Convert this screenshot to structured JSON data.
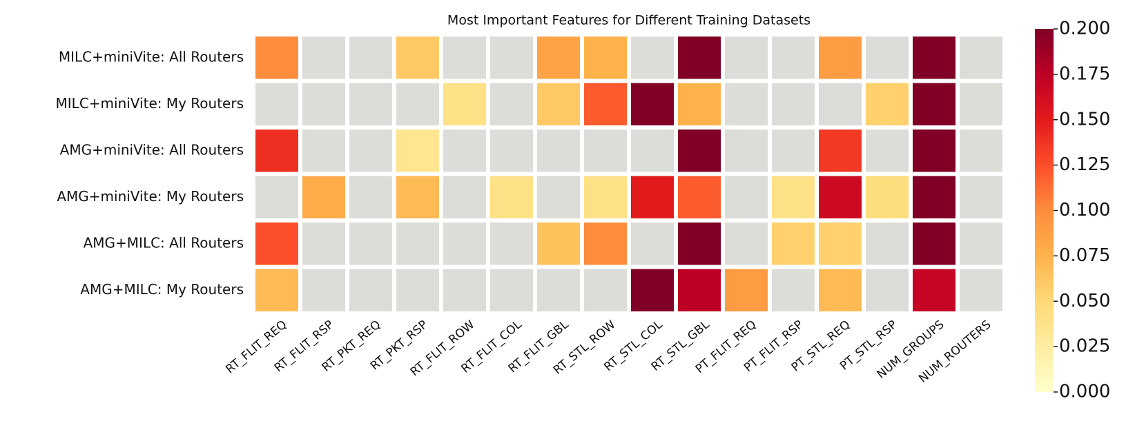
{
  "chart_data": {
    "type": "heatmap",
    "title": "Most Important Features for Different Training Datasets",
    "rows": [
      "MILC+miniVite: All Routers",
      "MILC+miniVite: My Routers",
      "AMG+miniVite: All Routers",
      "AMG+miniVite: My Routers",
      "AMG+MILC: All Routers",
      "AMG+MILC: My Routers"
    ],
    "columns": [
      "RT_FLIT_REQ",
      "RT_FLIT_RSP",
      "RT_PKT_REQ",
      "RT_PKT_RSP",
      "RT_FLIT_ROW",
      "RT_FLIT_COL",
      "RT_FLIT_GBL",
      "RT_STL_ROW",
      "RT_STL_COL",
      "RT_STL_GBL",
      "PT_FLIT_REQ",
      "PT_FLIT_RSP",
      "PT_STL_REQ",
      "PT_STL_RSP",
      "NUM_GROUPS",
      "NUM_ROUTERS"
    ],
    "values": [
      [
        0.1,
        null,
        null,
        0.06,
        null,
        null,
        0.085,
        0.075,
        null,
        0.2,
        null,
        null,
        0.09,
        null,
        0.2,
        null
      ],
      [
        null,
        null,
        null,
        null,
        0.04,
        null,
        0.06,
        0.12,
        0.2,
        0.075,
        null,
        null,
        null,
        0.055,
        0.2,
        null
      ],
      [
        0.14,
        null,
        null,
        0.035,
        null,
        null,
        null,
        null,
        null,
        0.2,
        null,
        null,
        0.135,
        null,
        0.2,
        null
      ],
      [
        null,
        0.08,
        null,
        0.07,
        null,
        0.04,
        null,
        0.04,
        0.15,
        0.12,
        null,
        0.04,
        0.165,
        0.045,
        0.2,
        null
      ],
      [
        0.125,
        null,
        null,
        null,
        null,
        null,
        0.065,
        0.1,
        null,
        0.2,
        null,
        0.055,
        0.055,
        null,
        0.2,
        null
      ],
      [
        0.07,
        null,
        null,
        null,
        null,
        null,
        null,
        null,
        0.2,
        0.175,
        0.09,
        null,
        0.07,
        null,
        0.17,
        null
      ]
    ],
    "colormap": "YlOrRd",
    "null_color": "#dcdcd9",
    "clim": [
      0,
      0.2
    ],
    "cticks": [
      {
        "value": 0,
        "label": "0.000"
      },
      0.025,
      {
        "value": 0.05,
        "label": "0.050"
      },
      0.075,
      {
        "value": 0.1,
        "label": "0.100"
      },
      0.125,
      {
        "value": 0.15,
        "label": "0.150"
      },
      0.175,
      {
        "value": 0.2,
        "label": "0.200"
      }
    ]
  }
}
